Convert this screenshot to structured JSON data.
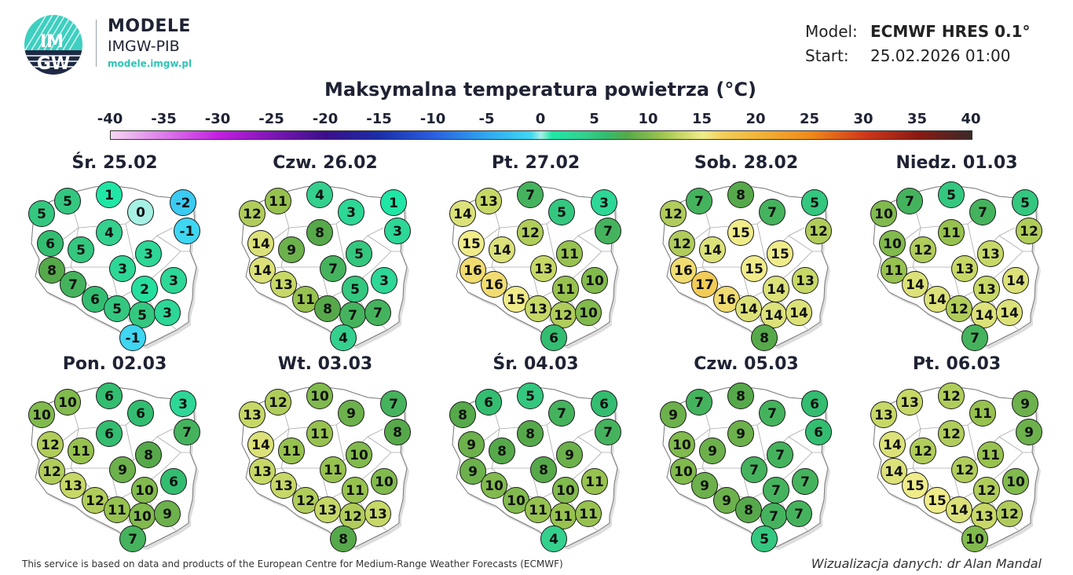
{
  "logo": {
    "brand": "MODELE",
    "org": "IMGW-PIB",
    "url": "modele.imgw.pl",
    "mark_text": "IMGW"
  },
  "model": {
    "model_label": "Model:",
    "model_value": "ECMWF HRES 0.1°",
    "start_label": "Start:",
    "start_value": "25.02.2026 01:00"
  },
  "title": "Maksymalna temperatura powietrza (°C)",
  "colorbar": {
    "ticks": [
      "-40",
      "-35",
      "-30",
      "-25",
      "-20",
      "-15",
      "-10",
      "-5",
      "0",
      "5",
      "10",
      "15",
      "20",
      "25",
      "30",
      "35",
      "40"
    ],
    "range": [
      -40,
      40
    ],
    "stops": [
      [
        -40,
        "#f6d6f3"
      ],
      [
        -30,
        "#c21fe0"
      ],
      [
        -20,
        "#3a0f8a"
      ],
      [
        -15,
        "#1a2fa8"
      ],
      [
        -10,
        "#2a5fe0"
      ],
      [
        -5,
        "#2fa8f0"
      ],
      [
        -1,
        "#3fd6f2"
      ],
      [
        0,
        "#a6f0e4"
      ],
      [
        1,
        "#1fe6a6"
      ],
      [
        4,
        "#34d08e"
      ],
      [
        6,
        "#33bd70"
      ],
      [
        8,
        "#56a94a"
      ],
      [
        11,
        "#97c24f"
      ],
      [
        13,
        "#c8d867"
      ],
      [
        15,
        "#f0ec8a"
      ],
      [
        17,
        "#f2cc58"
      ],
      [
        20,
        "#f2b53a"
      ],
      [
        25,
        "#f08a1a"
      ],
      [
        30,
        "#d0381a"
      ],
      [
        35,
        "#8a1a12"
      ],
      [
        40,
        "#3a2a2a"
      ]
    ]
  },
  "days": [
    {
      "label": "Śr. 25.02",
      "values": [
        5,
        5,
        1,
        0,
        -2,
        -1,
        6,
        5,
        4,
        3,
        3,
        8,
        7,
        6,
        5,
        5,
        3,
        2,
        3,
        -1
      ]
    },
    {
      "label": "Czw. 26.02",
      "values": [
        12,
        11,
        4,
        3,
        1,
        3,
        14,
        9,
        8,
        5,
        7,
        14,
        13,
        11,
        8,
        7,
        7,
        5,
        3,
        4
      ]
    },
    {
      "label": "Pt. 27.02",
      "values": [
        14,
        13,
        7,
        5,
        3,
        7,
        15,
        14,
        12,
        11,
        13,
        16,
        16,
        15,
        13,
        12,
        10,
        11,
        10,
        6
      ]
    },
    {
      "label": "Sob. 28.02",
      "values": [
        12,
        7,
        8,
        7,
        5,
        12,
        12,
        14,
        15,
        15,
        15,
        16,
        17,
        16,
        14,
        14,
        14,
        14,
        13,
        8
      ]
    },
    {
      "label": "Niedz. 01.03",
      "values": [
        10,
        7,
        5,
        7,
        5,
        12,
        10,
        12,
        11,
        13,
        13,
        11,
        14,
        14,
        12,
        14,
        14,
        13,
        14,
        7
      ]
    },
    {
      "label": "Pon. 02.03",
      "values": [
        10,
        10,
        6,
        6,
        3,
        7,
        12,
        11,
        6,
        8,
        9,
        12,
        13,
        12,
        11,
        10,
        9,
        10,
        6,
        7
      ]
    },
    {
      "label": "Wt. 03.03",
      "values": [
        13,
        12,
        10,
        9,
        7,
        8,
        14,
        11,
        11,
        10,
        11,
        13,
        13,
        12,
        13,
        12,
        13,
        11,
        10,
        8
      ]
    },
    {
      "label": "Śr. 04.03",
      "values": [
        8,
        6,
        5,
        7,
        6,
        7,
        9,
        8,
        8,
        9,
        8,
        9,
        10,
        10,
        11,
        11,
        11,
        10,
        11,
        4
      ]
    },
    {
      "label": "Czw. 05.03",
      "values": [
        9,
        7,
        8,
        7,
        6,
        6,
        10,
        9,
        9,
        7,
        7,
        10,
        9,
        9,
        8,
        7,
        7,
        7,
        7,
        5
      ]
    },
    {
      "label": "Pt. 06.03",
      "values": [
        13,
        13,
        12,
        11,
        9,
        9,
        14,
        12,
        12,
        11,
        12,
        14,
        15,
        15,
        14,
        13,
        12,
        12,
        10,
        10
      ]
    }
  ],
  "footer": {
    "attribution": "This service is based on data and products of the European Centre for Medium-Range Weather Forecasts (ECMWF)",
    "credit": "Wizualizacja danych: dr Alan Mandal"
  }
}
